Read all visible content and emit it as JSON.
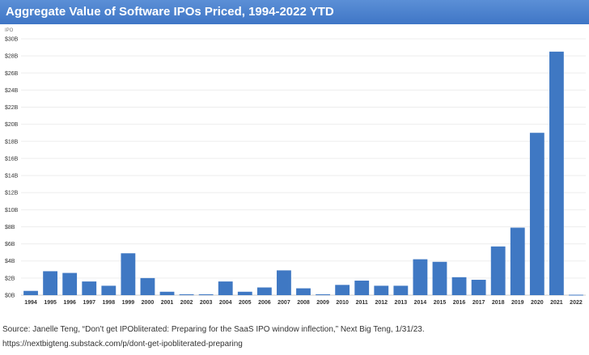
{
  "chart_data": {
    "type": "bar",
    "title": "Aggregate Value of Software IPOs Priced, 1994-2022 YTD",
    "ylabel": "IPO",
    "xlabel": "",
    "ylim": [
      0,
      30
    ],
    "grid": true,
    "y_ticks": [
      "$0B",
      "$2B",
      "$4B",
      "$6B",
      "$8B",
      "$10B",
      "$12B",
      "$14B",
      "$16B",
      "$18B",
      "$20B",
      "$22B",
      "$24B",
      "$26B",
      "$28B",
      "$30B"
    ],
    "categories": [
      "1994",
      "1995",
      "1996",
      "1997",
      "1998",
      "1999",
      "2000",
      "2001",
      "2002",
      "2003",
      "2004",
      "2005",
      "2006",
      "2007",
      "2008",
      "2009",
      "2010",
      "2011",
      "2012",
      "2013",
      "2014",
      "2015",
      "2016",
      "2017",
      "2018",
      "2019",
      "2020",
      "2021",
      "2022"
    ],
    "values": [
      0.5,
      2.8,
      2.6,
      1.6,
      1.1,
      4.9,
      2.0,
      0.4,
      0.1,
      0.1,
      1.6,
      0.4,
      0.9,
      2.9,
      0.8,
      0.1,
      1.2,
      1.7,
      1.1,
      1.1,
      4.2,
      3.9,
      2.1,
      1.8,
      5.7,
      7.9,
      19.0,
      28.5,
      0.05
    ],
    "bar_color": "#3f78c3"
  },
  "source_line": "Source: Janelle Teng, “Don’t get IPObliterated: Preparing for the SaaS IPO window inflection,” Next Big Teng, 1/31/23.",
  "source_url": "https://nextbigteng.substack.com/p/dont-get-ipobliterated-preparing"
}
